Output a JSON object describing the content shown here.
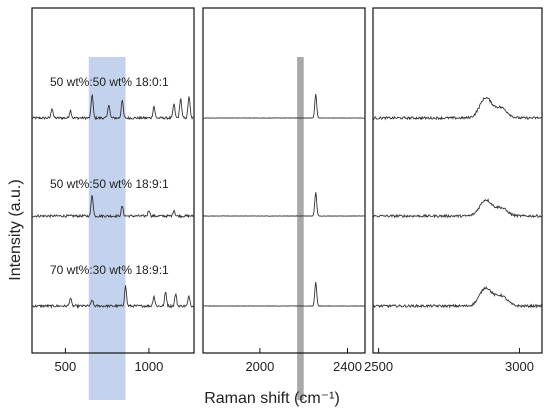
{
  "chart_data": {
    "type": "line",
    "xlabel": "Raman shift (cm⁻¹)",
    "ylabel": "Intensity (a.u.)",
    "grid": false,
    "colors": {
      "line": "#333333",
      "frame": "#111111",
      "band_blue": "#b9cbea",
      "band_gray": "#9a9a9a"
    },
    "series_labels": [
      "50 wt%:50 wt% 18:0:1",
      "50 wt%:50 wt% 18:9:1",
      "70 wt%:30 wt% 18:9:1"
    ],
    "panels": [
      {
        "name": "panel-1",
        "xlim": [
          300,
          1270
        ],
        "ticks": [
          500,
          1000
        ],
        "tick_labels": [
          "500",
          "1000"
        ],
        "highlight": {
          "x_range": [
            640,
            860
          ],
          "color": "#b9cbea"
        },
        "peaks_per_series": [
          [
            [
              420,
              0.5
            ],
            [
              530,
              0.4
            ],
            [
              660,
              1.2
            ],
            [
              760,
              0.7
            ],
            [
              840,
              0.9
            ],
            [
              1030,
              0.6
            ],
            [
              1150,
              0.7
            ],
            [
              1190,
              1.0
            ],
            [
              1240,
              1.1
            ]
          ],
          [
            [
              660,
              1.1
            ],
            [
              840,
              0.5
            ],
            [
              1000,
              0.3
            ],
            [
              1150,
              0.3
            ]
          ],
          [
            [
              530,
              0.4
            ],
            [
              660,
              0.3
            ],
            [
              860,
              1.0
            ],
            [
              1030,
              0.5
            ],
            [
              1100,
              0.7
            ],
            [
              1160,
              0.6
            ],
            [
              1240,
              0.5
            ]
          ]
        ]
      },
      {
        "name": "panel-2",
        "xlim": [
          1740,
          2480
        ],
        "ticks": [
          2000,
          2400
        ],
        "tick_labels": [
          "2000",
          "2400"
        ],
        "highlight": {
          "x_range": [
            2170,
            2200
          ],
          "color": "#9a9a9a"
        },
        "peaks_per_series": [
          [
            [
              2255,
              1.2
            ]
          ],
          [
            [
              2255,
              1.2
            ]
          ],
          [
            [
              2255,
              1.2
            ]
          ]
        ]
      },
      {
        "name": "panel-3",
        "xlim": [
          2480,
          3080
        ],
        "ticks": [
          2500,
          3000
        ],
        "tick_labels": [
          "2500",
          "3000"
        ],
        "highlight": null,
        "peaks_per_series": [
          [
            [
              2880,
              1.0
            ],
            [
              2935,
              0.5
            ]
          ],
          [
            [
              2880,
              0.8
            ],
            [
              2935,
              0.4
            ]
          ],
          [
            [
              2880,
              0.9
            ],
            [
              2935,
              0.5
            ]
          ]
        ]
      }
    ]
  }
}
